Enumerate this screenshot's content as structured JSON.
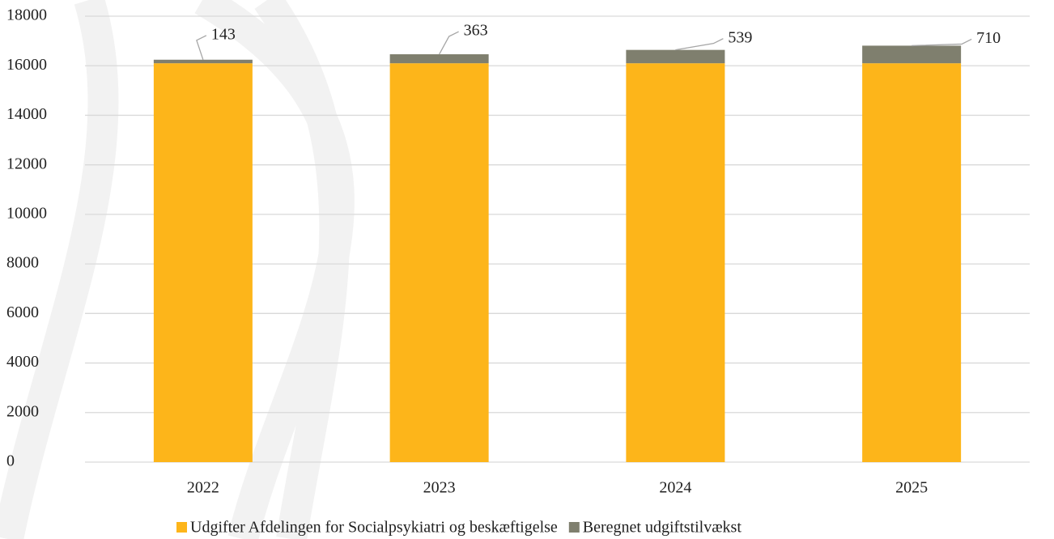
{
  "chart_data": {
    "type": "stacked_bar",
    "categories": [
      "2022",
      "2023",
      "2024",
      "2025"
    ],
    "series": [
      {
        "name": "Udgifter Afdelingen for Socialpsykiatri og beskæftigelse",
        "color": "#fdb51a",
        "values": [
          16100,
          16100,
          16100,
          16100
        ]
      },
      {
        "name": "Beregnet udgiftstilvækst",
        "color": "#7f7f6e",
        "values": [
          143,
          363,
          539,
          710
        ],
        "data_labels": true
      }
    ],
    "ylim": [
      0,
      18000
    ],
    "yticks": [
      0,
      2000,
      4000,
      6000,
      8000,
      10000,
      12000,
      14000,
      16000,
      18000
    ],
    "grid": true,
    "legend": "bottom"
  }
}
